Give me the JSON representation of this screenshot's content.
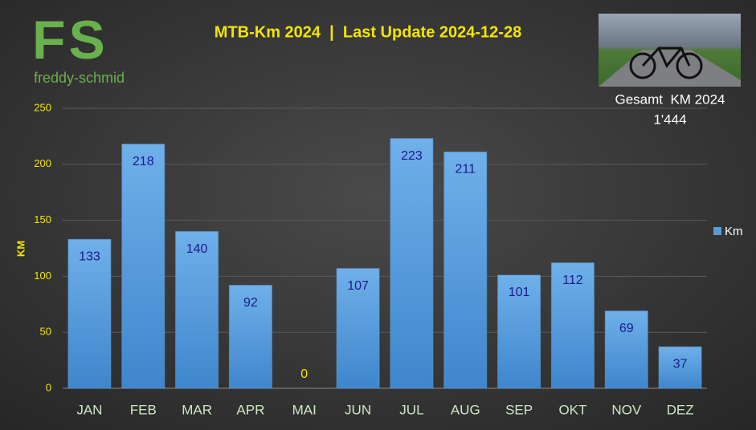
{
  "chart_data": {
    "type": "bar",
    "title": "MTB-Km 2024  |  Last Update 2024-12-28",
    "logo": "FS",
    "logo_subtitle": "freddy-schmid",
    "annotation": "Gesamt  KM 2024",
    "total": "1'444",
    "y_label": "KM",
    "categories": [
      "JAN",
      "FEB",
      "MAR",
      "APR",
      "MAI",
      "JUN",
      "JUL",
      "AUG",
      "SEP",
      "OKT",
      "NOV",
      "DEZ"
    ],
    "series": [
      {
        "name": "Km",
        "color": "#5b9bd5",
        "values": [
          133,
          218,
          140,
          92,
          0,
          107,
          223,
          211,
          101,
          112,
          69,
          37
        ]
      }
    ],
    "ylim": [
      0,
      250
    ],
    "yticks": [
      0,
      50,
      100,
      150,
      200,
      250
    ],
    "grid": true,
    "legend": "right"
  }
}
